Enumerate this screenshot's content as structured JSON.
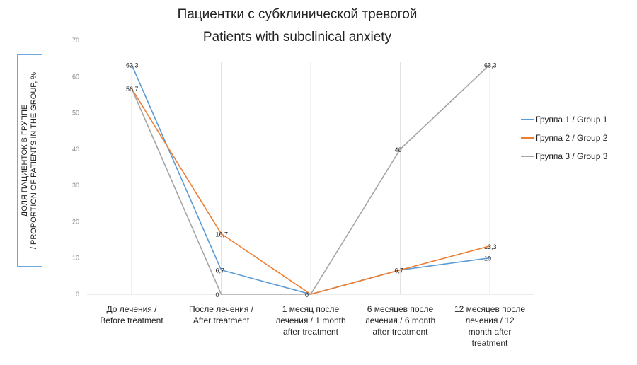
{
  "chart_data": {
    "type": "line",
    "title": "Пациентки с субклинической тревогой",
    "subtitle": "Patients with subclinical anxiety",
    "ylabel_line1": "ДОЛЯ ПАЦИЕНТОК В ГРУППЕ",
    "ylabel_line2": "/ PROPORTION OF PATIENTS IN THE GROUP, %",
    "ylim": [
      0,
      70
    ],
    "yticks": [
      0,
      10,
      20,
      30,
      40,
      50,
      60,
      70
    ],
    "grid": "vertical lines only",
    "legend_position": "right",
    "categories": [
      [
        "До лечения  /",
        "Before  treatment"
      ],
      [
        "После  лечения  /",
        "After  treatment"
      ],
      [
        "1 месяц  после",
        "лечения  /  1 month",
        "after  treatment"
      ],
      [
        "6 месяцев  после",
        "лечения  /  6 month",
        "after   treatment"
      ],
      [
        "12 месяцев  после",
        "лечения  /  12",
        "month  after",
        "treatment"
      ]
    ],
    "series": [
      {
        "name": "Группа 1 / Group 1",
        "color": "#5b9bd5",
        "values": [
          63.3,
          6.7,
          0,
          6.7,
          10
        ],
        "labels": [
          "63,3",
          "6,7",
          "",
          "6,7",
          "10"
        ]
      },
      {
        "name": "Группа 2 / Group 2",
        "color": "#ed7d31",
        "values": [
          56.7,
          16.7,
          0,
          6.7,
          13.3
        ],
        "labels": [
          "56,7",
          "16,7",
          "",
          "",
          "13,3"
        ]
      },
      {
        "name": "Группа 3 / Group 3",
        "color": "#a5a5a5",
        "values": [
          56.7,
          0,
          0,
          40,
          63.3
        ],
        "labels": [
          "",
          "0",
          "0",
          "40",
          "63,3"
        ]
      }
    ]
  }
}
